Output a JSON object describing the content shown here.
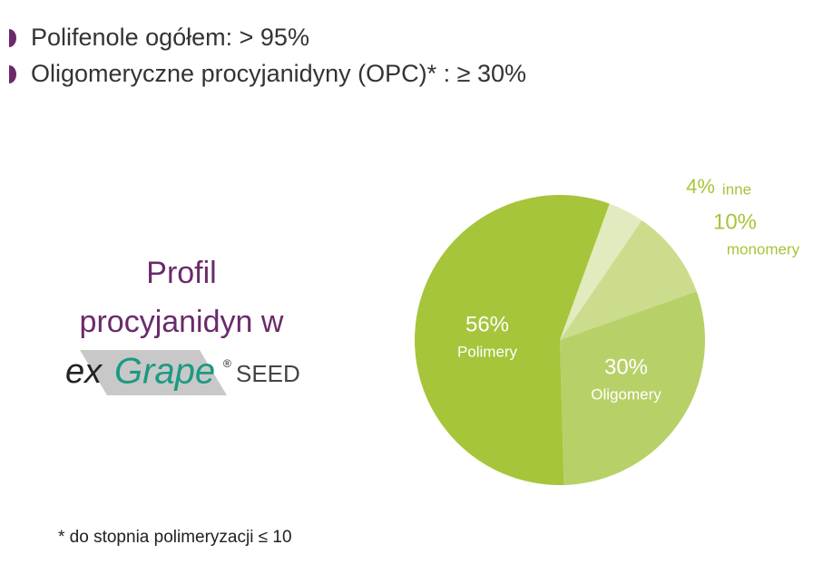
{
  "bullets": [
    "Polifenole ogółem: > 95%",
    "Oligomeryczne procyjanidyny (OPC)* : ≥ 30%"
  ],
  "side_title": [
    "Profil",
    "procyjanidyn w"
  ],
  "logo": {
    "prefix": "ex",
    "brand": "Grape",
    "mark": "®",
    "suffix": "SEED"
  },
  "footnote": "* do stopnia polimeryzacji ≤ 10",
  "chart_data": {
    "type": "pie",
    "categories": [
      "inne",
      "monomery",
      "Oligomery",
      "Polimery"
    ],
    "values": [
      4,
      10,
      30,
      56
    ],
    "value_labels": [
      "4%",
      "10%",
      "30%",
      "56%"
    ],
    "colors": [
      "#e1ebbf",
      "#cbdd8c",
      "#b8d068",
      "#a6c53a"
    ]
  }
}
